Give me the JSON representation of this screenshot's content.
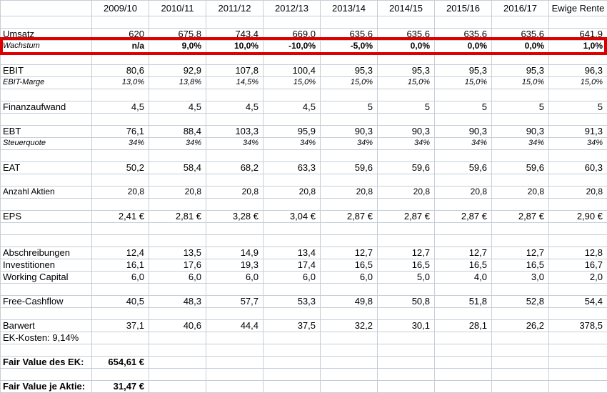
{
  "colors": {
    "gridline": "#c5ced8",
    "highlight_border": "#dd0000"
  },
  "table": {
    "columns": [
      "",
      "2009/10",
      "2010/11",
      "2011/12",
      "2012/13",
      "2013/14",
      "2014/15",
      "2015/16",
      "2016/17",
      "Ewige Rente"
    ],
    "rows": [
      {
        "name": "row-empty-1",
        "style": "empty",
        "label": "",
        "values": []
      },
      {
        "name": "row-umsatz",
        "style": "main",
        "label": "Umsatz",
        "values": [
          "620",
          "675,8",
          "743,4",
          "669,0",
          "635,6",
          "635,6",
          "635,6",
          "635,6",
          "641,9"
        ]
      },
      {
        "name": "row-wachstum",
        "style": "growth",
        "highlight": true,
        "label": "Wachstum",
        "values": [
          "n/a",
          "9,0%",
          "10,0%",
          "-10,0%",
          "-5,0%",
          "0,0%",
          "0,0%",
          "0,0%",
          "1,0%"
        ]
      },
      {
        "name": "row-empty-2",
        "style": "empty",
        "label": "",
        "values": []
      },
      {
        "name": "row-ebit",
        "style": "main",
        "label": "EBIT",
        "values": [
          "80,6",
          "92,9",
          "107,8",
          "100,4",
          "95,3",
          "95,3",
          "95,3",
          "95,3",
          "96,3"
        ]
      },
      {
        "name": "row-ebit-marge",
        "style": "italic",
        "label": "EBIT-Marge",
        "values": [
          "13,0%",
          "13,8%",
          "14,5%",
          "15,0%",
          "15,0%",
          "15,0%",
          "15,0%",
          "15,0%",
          "15,0%"
        ]
      },
      {
        "name": "row-empty-3",
        "style": "empty",
        "label": "",
        "values": []
      },
      {
        "name": "row-finanzaufwand",
        "style": "main",
        "label": "Finanzaufwand",
        "values": [
          "4,5",
          "4,5",
          "4,5",
          "4,5",
          "5",
          "5",
          "5",
          "5",
          "5"
        ]
      },
      {
        "name": "row-empty-4",
        "style": "empty",
        "label": "",
        "values": []
      },
      {
        "name": "row-ebt",
        "style": "main",
        "label": "EBT",
        "values": [
          "76,1",
          "88,4",
          "103,3",
          "95,9",
          "90,3",
          "90,3",
          "90,3",
          "90,3",
          "91,3"
        ]
      },
      {
        "name": "row-steuerquote",
        "style": "italic",
        "label": "Steuerquote",
        "values": [
          "34%",
          "34%",
          "34%",
          "34%",
          "34%",
          "34%",
          "34%",
          "34%",
          "34%"
        ]
      },
      {
        "name": "row-empty-5",
        "style": "empty",
        "label": "",
        "values": []
      },
      {
        "name": "row-eat",
        "style": "main",
        "label": "EAT",
        "values": [
          "50,2",
          "58,4",
          "68,2",
          "63,3",
          "59,6",
          "59,6",
          "59,6",
          "59,6",
          "60,3"
        ]
      },
      {
        "name": "row-empty-6",
        "style": "empty",
        "label": "",
        "values": []
      },
      {
        "name": "row-anzahl-aktien",
        "style": "small",
        "label": "Anzahl Aktien",
        "values": [
          "20,8",
          "20,8",
          "20,8",
          "20,8",
          "20,8",
          "20,8",
          "20,8",
          "20,8",
          "20,8"
        ]
      },
      {
        "name": "row-empty-7",
        "style": "empty",
        "label": "",
        "values": []
      },
      {
        "name": "row-eps",
        "style": "main",
        "label": "EPS",
        "values": [
          "2,41 €",
          "2,81 €",
          "3,28 €",
          "3,04 €",
          "2,87 €",
          "2,87 €",
          "2,87 €",
          "2,87 €",
          "2,90 €"
        ]
      },
      {
        "name": "row-empty-8",
        "style": "empty",
        "label": "",
        "values": []
      },
      {
        "name": "row-empty-9",
        "style": "empty",
        "label": "",
        "values": []
      },
      {
        "name": "row-abschreibungen",
        "style": "main",
        "label": "Abschreibungen",
        "values": [
          "12,4",
          "13,5",
          "14,9",
          "13,4",
          "12,7",
          "12,7",
          "12,7",
          "12,7",
          "12,8"
        ]
      },
      {
        "name": "row-investitionen",
        "style": "main",
        "label": "Investitionen",
        "values": [
          "16,1",
          "17,6",
          "19,3",
          "17,4",
          "16,5",
          "16,5",
          "16,5",
          "16,5",
          "16,7"
        ]
      },
      {
        "name": "row-working-capital",
        "style": "main",
        "label": "Working Capital",
        "values": [
          "6,0",
          "6,0",
          "6,0",
          "6,0",
          "6,0",
          "5,0",
          "4,0",
          "3,0",
          "2,0"
        ]
      },
      {
        "name": "row-empty-10",
        "style": "empty",
        "label": "",
        "values": []
      },
      {
        "name": "row-free-cashflow",
        "style": "main",
        "label": "Free-Cashflow",
        "values": [
          "40,5",
          "48,3",
          "57,7",
          "53,3",
          "49,8",
          "50,8",
          "51,8",
          "52,8",
          "54,4"
        ]
      },
      {
        "name": "row-empty-11",
        "style": "empty",
        "label": "",
        "values": []
      },
      {
        "name": "row-barwert",
        "style": "main",
        "label": "Barwert",
        "values": [
          "37,1",
          "40,6",
          "44,4",
          "37,5",
          "32,2",
          "30,1",
          "28,1",
          "26,2",
          "378,5"
        ]
      },
      {
        "name": "row-ek-kosten",
        "style": "main",
        "label": "EK-Kosten: 9,14%",
        "values": []
      },
      {
        "name": "row-empty-12",
        "style": "empty",
        "label": "",
        "values": []
      },
      {
        "name": "row-fair-value-ek",
        "style": "bold",
        "label": "Fair Value des EK:",
        "values": [
          "654,61 €"
        ]
      },
      {
        "name": "row-empty-13",
        "style": "empty",
        "label": "",
        "values": []
      },
      {
        "name": "row-fair-value-aktie",
        "style": "bold",
        "label": "Fair Value je Aktie:",
        "values": [
          "31,47 €"
        ]
      }
    ]
  }
}
